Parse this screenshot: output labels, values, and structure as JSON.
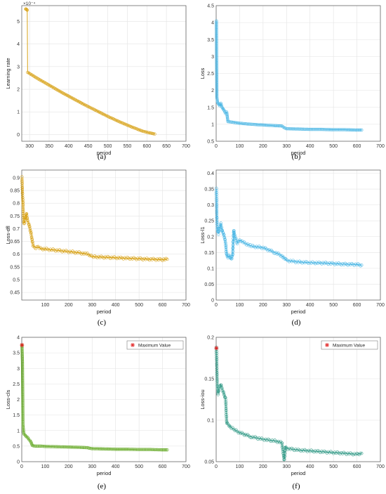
{
  "chart_data": [
    {
      "id": "a",
      "type": "line",
      "caption": "(a)",
      "ylabel": "Learning rate",
      "xlabel": "period",
      "exponent_label": "×10⁻⁴",
      "color": "#d8a31a",
      "xlim": [
        280,
        700
      ],
      "ylim": [
        -0.3,
        5.7
      ],
      "xticks": [
        300,
        350,
        400,
        450,
        500,
        550,
        600,
        650,
        700
      ],
      "yticks": [
        0,
        1,
        2,
        3,
        4,
        5
      ],
      "ytick_labels": [
        "0",
        "1",
        "2",
        "3",
        "4",
        "5"
      ],
      "series": [
        {
          "x": [
            290,
            291,
            292,
            293,
            294
          ],
          "y": [
            5.55,
            5.55,
            5.53,
            5.52,
            5.5
          ],
          "marker": "circle"
        },
        {
          "x": [
            295,
            320,
            350,
            380,
            410,
            440,
            470,
            500,
            530,
            560,
            590,
            620
          ],
          "y": [
            2.75,
            2.48,
            2.18,
            1.88,
            1.6,
            1.32,
            1.06,
            0.8,
            0.56,
            0.34,
            0.14,
            0.02
          ],
          "marker": "circle"
        }
      ],
      "connector": {
        "x": [
          294,
          295
        ],
        "y": [
          5.5,
          2.75
        ]
      },
      "legend": null
    },
    {
      "id": "b",
      "type": "line",
      "caption": "(b)",
      "ylabel": "Loss",
      "xlabel": "period",
      "color": "#4fb8e5",
      "xlim": [
        0,
        700
      ],
      "ylim": [
        0.5,
        4.5
      ],
      "xticks": [
        0,
        100,
        200,
        300,
        400,
        500,
        600,
        700
      ],
      "yticks": [
        0.5,
        1,
        1.5,
        2,
        2.5,
        3,
        3.5,
        4,
        4.5
      ],
      "ytick_labels": [
        "0.5",
        "1",
        "1.5",
        "2",
        "2.5",
        "3",
        "3.5",
        "4",
        "4.5"
      ],
      "series": [
        {
          "x": [
            1,
            3,
            6,
            10,
            15,
            20,
            25,
            30,
            35,
            40,
            45,
            50,
            60,
            80,
            100,
            150,
            200,
            250,
            280,
            290,
            300,
            350,
            400,
            450,
            500,
            550,
            600,
            620
          ],
          "y": [
            4.05,
            1.8,
            1.65,
            1.6,
            1.55,
            1.62,
            1.5,
            1.45,
            1.4,
            1.32,
            1.36,
            1.08,
            1.07,
            1.05,
            1.03,
            1.0,
            0.98,
            0.96,
            0.95,
            0.9,
            0.87,
            0.86,
            0.85,
            0.85,
            0.84,
            0.84,
            0.83,
            0.83
          ],
          "marker": "circle"
        }
      ],
      "legend": null
    },
    {
      "id": "c",
      "type": "line",
      "caption": "(c)",
      "ylabel": "Loss-dfl",
      "xlabel": "period",
      "color": "#d8a31a",
      "xlim": [
        0,
        700
      ],
      "ylim": [
        0.42,
        0.93
      ],
      "xticks": [
        100,
        200,
        300,
        400,
        500,
        600,
        700
      ],
      "yticks": [
        0.45,
        0.5,
        0.55,
        0.6,
        0.65,
        0.7,
        0.75,
        0.8,
        0.85,
        0.9
      ],
      "ytick_labels": [
        "0.45",
        "0.5",
        "0.55",
        "0.6",
        "0.65",
        "0.7",
        "0.75",
        "0.8",
        "0.85",
        "0.9"
      ],
      "series": [
        {
          "x": [
            1,
            3,
            5,
            8,
            10,
            15,
            20,
            25,
            30,
            35,
            40,
            45,
            50,
            60,
            70,
            80,
            100,
            150,
            200,
            250,
            280,
            290,
            300,
            350,
            400,
            450,
            500,
            550,
            600,
            620
          ],
          "y": [
            0.9,
            0.84,
            0.8,
            0.73,
            0.72,
            0.74,
            0.76,
            0.73,
            0.72,
            0.7,
            0.68,
            0.65,
            0.63,
            0.625,
            0.63,
            0.622,
            0.62,
            0.615,
            0.61,
            0.605,
            0.6,
            0.595,
            0.59,
            0.588,
            0.586,
            0.584,
            0.582,
            0.58,
            0.579,
            0.58
          ],
          "marker": "circle"
        }
      ],
      "legend": null
    },
    {
      "id": "d",
      "type": "line",
      "caption": "(d)",
      "ylabel": "Loss-l1",
      "xlabel": "period",
      "color": "#4fb8e5",
      "xlim": [
        0,
        700
      ],
      "ylim": [
        0,
        0.41
      ],
      "xticks": [
        0,
        100,
        200,
        300,
        400,
        500,
        600,
        700
      ],
      "yticks": [
        0,
        0.05,
        0.1,
        0.15,
        0.2,
        0.25,
        0.3,
        0.35,
        0.4
      ],
      "ytick_labels": [
        "0",
        "0.05",
        "0.1",
        "0.15",
        "0.2",
        "0.25",
        "0.3",
        "0.35",
        "0.4"
      ],
      "series": [
        {
          "x": [
            1,
            3,
            5,
            10,
            15,
            20,
            25,
            30,
            35,
            40,
            45,
            50,
            55,
            60,
            65,
            70,
            75,
            80,
            90,
            100,
            120,
            150,
            200,
            250,
            280,
            300,
            350,
            400,
            450,
            500,
            550,
            600,
            620
          ],
          "y": [
            0.35,
            0.26,
            0.22,
            0.21,
            0.23,
            0.24,
            0.22,
            0.21,
            0.2,
            0.18,
            0.14,
            0.135,
            0.14,
            0.135,
            0.13,
            0.14,
            0.22,
            0.2,
            0.18,
            0.19,
            0.18,
            0.17,
            0.165,
            0.15,
            0.14,
            0.125,
            0.12,
            0.118,
            0.117,
            0.115,
            0.113,
            0.112,
            0.11
          ],
          "marker": "circle"
        }
      ],
      "legend": null
    },
    {
      "id": "e",
      "type": "line",
      "caption": "(e)",
      "ylabel": "Loss-cls",
      "xlabel": "period",
      "color": "#6aac2d",
      "xlim": [
        0,
        700
      ],
      "ylim": [
        0,
        4
      ],
      "xticks": [
        0,
        100,
        200,
        300,
        400,
        500,
        600,
        700
      ],
      "yticks": [
        0,
        0.5,
        1,
        1.5,
        2,
        2.5,
        3,
        3.5,
        4
      ],
      "ytick_labels": [
        "0",
        "0.5",
        "1",
        "1.5",
        "2",
        "2.5",
        "3",
        "3.5",
        "4"
      ],
      "series": [
        {
          "x": [
            1,
            3,
            5,
            8,
            10,
            15,
            20,
            25,
            30,
            35,
            40,
            45,
            50,
            60,
            80,
            100,
            150,
            200,
            250,
            280,
            290,
            300,
            350,
            400,
            450,
            500,
            550,
            600,
            620
          ],
          "y": [
            3.75,
            3.2,
            1.2,
            0.95,
            0.88,
            0.85,
            0.8,
            0.78,
            0.72,
            0.68,
            0.62,
            0.52,
            0.51,
            0.5,
            0.5,
            0.49,
            0.48,
            0.47,
            0.46,
            0.45,
            0.43,
            0.42,
            0.41,
            0.4,
            0.4,
            0.39,
            0.39,
            0.38,
            0.38
          ],
          "marker": "circle"
        }
      ],
      "max_point": {
        "x": 1,
        "y": 3.75
      },
      "legend": {
        "label": "Maximum Value",
        "position": "top-right"
      }
    },
    {
      "id": "f",
      "type": "line",
      "caption": "(f)",
      "ylabel": "Loss-iou",
      "xlabel": "period",
      "color": "#3fa08e",
      "xlim": [
        0,
        700
      ],
      "ylim": [
        0.05,
        0.2
      ],
      "xticks": [
        0,
        100,
        200,
        300,
        400,
        500,
        600,
        700
      ],
      "yticks": [
        0.05,
        0.1,
        0.15,
        0.2
      ],
      "ytick_labels": [
        "0.05",
        "0.1",
        "0.15",
        "0.2"
      ],
      "series": [
        {
          "x": [
            1,
            3,
            5,
            8,
            10,
            15,
            20,
            25,
            30,
            35,
            40,
            45,
            50,
            55,
            60,
            70,
            80,
            100,
            150,
            200,
            250,
            280,
            290,
            295,
            300,
            350,
            400,
            450,
            500,
            550,
            600,
            620
          ],
          "y": [
            0.187,
            0.163,
            0.14,
            0.132,
            0.135,
            0.14,
            0.143,
            0.138,
            0.135,
            0.13,
            0.126,
            0.097,
            0.095,
            0.094,
            0.092,
            0.09,
            0.088,
            0.085,
            0.08,
            0.077,
            0.075,
            0.073,
            0.052,
            0.068,
            0.066,
            0.064,
            0.063,
            0.062,
            0.061,
            0.06,
            0.059,
            0.06
          ],
          "marker": "circle"
        }
      ],
      "max_point": {
        "x": 1,
        "y": 0.187
      },
      "legend": {
        "label": "Maximum Value",
        "position": "top-right"
      }
    }
  ]
}
